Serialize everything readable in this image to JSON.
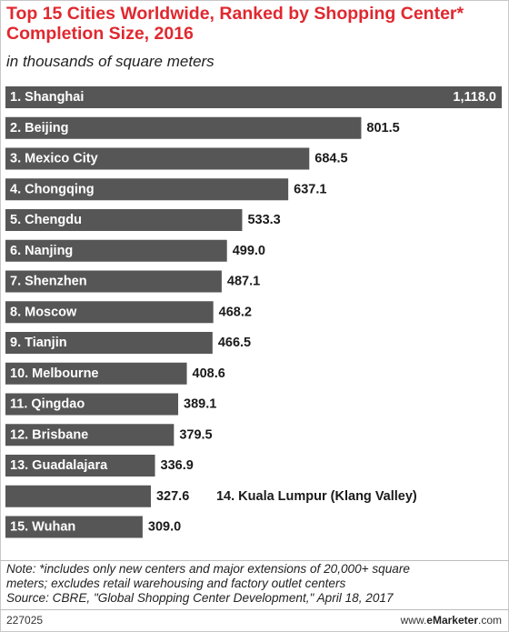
{
  "title": "Top 15 Cities Worldwide, Ranked by Shopping Center* Completion Size, 2016",
  "subtitle": "in thousands of square meters",
  "chart_data": {
    "type": "bar",
    "orientation": "horizontal",
    "title": "Top 15 Cities Worldwide, Ranked by Shopping Center* Completion Size, 2016",
    "subtitle": "in thousands of square meters",
    "categories": [
      "1. Shanghai",
      "2. Beijing",
      "3. Mexico City",
      "4. Chongqing",
      "5. Chengdu",
      "6. Nanjing",
      "7. Shenzhen",
      "8. Moscow",
      "9. Tianjin",
      "10. Melbourne",
      "11. Qingdao",
      "12. Brisbane",
      "13. Guadalajara",
      "14. Kuala Lumpur (Klang Valley)",
      "15. Wuhan"
    ],
    "values": [
      1118.0,
      801.5,
      684.5,
      637.1,
      533.3,
      499.0,
      487.1,
      468.2,
      466.5,
      408.6,
      389.1,
      379.5,
      336.9,
      327.6,
      309.0
    ],
    "value_labels": [
      "1,118.0",
      "801.5",
      "684.5",
      "637.1",
      "533.3",
      "499.0",
      "487.1",
      "468.2",
      "466.5",
      "408.6",
      "389.1",
      "379.5",
      "336.9",
      "327.6",
      "309.0"
    ],
    "bar_color": "#565656",
    "xlim": [
      0,
      1118.0
    ],
    "grid": false,
    "legend": "none"
  },
  "note_lines": [
    "Note: *includes only new centers and major extensions of 20,000+ square",
    "meters; excludes retail warehousing and factory outlet centers",
    "Source: CBRE, \"Global Shopping Center Development,\" April 18, 2017"
  ],
  "chart_id": "227025",
  "brand_prefix": "www.",
  "brand_name": "eMarketer",
  "brand_suffix": ".com"
}
